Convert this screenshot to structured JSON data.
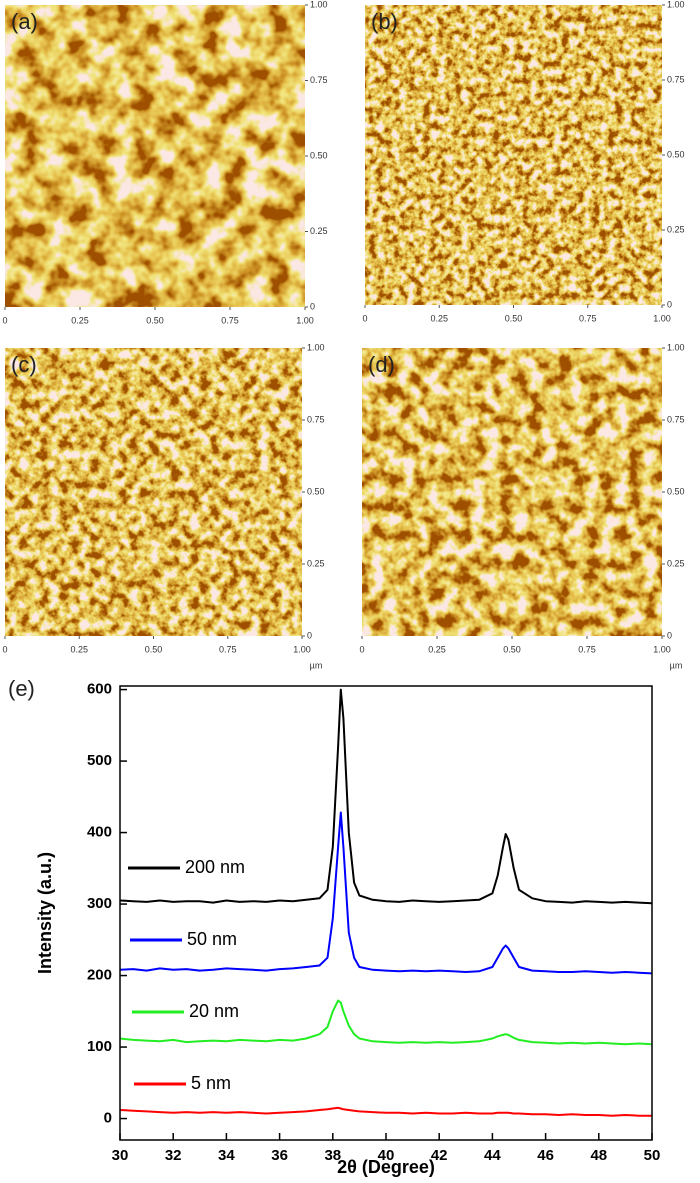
{
  "chart_data": [
    {
      "type": "afm",
      "label": "(a)",
      "xlim": [
        0,
        1
      ],
      "ylim": [
        0,
        1
      ],
      "xticks": [
        0,
        0.25,
        {
          "value": 0.5,
          "label": "0.50"
        },
        0.75,
        {
          "value": 1,
          "label": "1.00"
        }
      ],
      "yticks": [
        0,
        0.25,
        {
          "value": 0.5,
          "label": "0.50"
        },
        0.75,
        {
          "value": 1,
          "label": "1.00"
        }
      ]
    },
    {
      "type": "afm",
      "label": "(b)",
      "xlim": [
        0,
        1
      ],
      "ylim": [
        0,
        1
      ],
      "xticks": [
        0,
        0.25,
        {
          "value": 0.5,
          "label": "0.50"
        },
        0.75,
        {
          "value": 1,
          "label": "1.00"
        }
      ],
      "yticks": [
        0,
        0.25,
        {
          "value": 0.5,
          "label": "0.50"
        },
        0.75,
        {
          "value": 1,
          "label": "1.00"
        }
      ]
    },
    {
      "type": "afm",
      "label": "(c)",
      "unit": "µm",
      "xlim": [
        0,
        1
      ],
      "ylim": [
        0,
        1
      ],
      "xticks": [
        0,
        0.25,
        {
          "value": 0.5,
          "label": "0.50"
        },
        0.75,
        {
          "value": 1,
          "label": "1.00"
        }
      ],
      "yticks": [
        0,
        0.25,
        {
          "value": 0.5,
          "label": "0.50"
        },
        0.75,
        {
          "value": 1,
          "label": "1.00"
        }
      ]
    },
    {
      "type": "afm",
      "label": "(d)",
      "unit": "µm",
      "xlim": [
        0,
        1
      ],
      "ylim": [
        0,
        1
      ],
      "xticks": [
        0,
        0.25,
        {
          "value": 0.5,
          "label": "0.50"
        },
        0.75,
        {
          "value": 1,
          "label": "1.00"
        }
      ],
      "yticks": [
        0,
        0.25,
        {
          "value": 0.5,
          "label": "0.50"
        },
        0.75,
        {
          "value": 1,
          "label": "1.00"
        }
      ]
    },
    {
      "type": "line",
      "label": "(e)",
      "xlabel": "2θ (Degree)",
      "ylabel": "Intensity (a.u.)",
      "xlim": [
        30,
        50
      ],
      "ylim": [
        -30,
        605
      ],
      "xticks": [
        30,
        32,
        34,
        36,
        38,
        40,
        42,
        44,
        46,
        48,
        50
      ],
      "yticks": [
        0,
        100,
        200,
        300,
        400,
        500,
        600
      ],
      "x": [
        30,
        30.5,
        31,
        31.5,
        32,
        32.5,
        33,
        33.5,
        34,
        34.5,
        35,
        35.5,
        36,
        36.5,
        37,
        37.5,
        37.8,
        38.0,
        38.2,
        38.3,
        38.4,
        38.6,
        38.8,
        39.0,
        39.5,
        40,
        40.5,
        41,
        41.5,
        42,
        42.5,
        43,
        43.5,
        44.0,
        44.2,
        44.4,
        44.5,
        44.6,
        44.8,
        45.0,
        45.5,
        46,
        46.5,
        47,
        47.5,
        48,
        48.5,
        49,
        49.5,
        50
      ],
      "series": [
        {
          "name": "200 nm",
          "color": "#000000",
          "values": [
            305,
            304,
            303,
            305,
            303,
            304,
            304,
            302,
            305,
            303,
            304,
            303,
            305,
            304,
            306,
            308,
            320,
            380,
            520,
            600,
            560,
            400,
            330,
            312,
            306,
            304,
            303,
            305,
            304,
            303,
            304,
            305,
            306,
            315,
            340,
            380,
            398,
            390,
            350,
            320,
            308,
            304,
            303,
            302,
            304,
            303,
            302,
            303,
            302,
            301
          ]
        },
        {
          "name": "50 nm",
          "color": "#0000ff",
          "values": [
            208,
            209,
            207,
            210,
            208,
            209,
            207,
            208,
            210,
            209,
            208,
            207,
            209,
            210,
            212,
            214,
            225,
            280,
            380,
            428,
            380,
            260,
            225,
            212,
            208,
            207,
            206,
            207,
            206,
            207,
            206,
            205,
            206,
            212,
            225,
            238,
            242,
            238,
            225,
            212,
            207,
            206,
            205,
            205,
            206,
            205,
            204,
            205,
            204,
            203
          ]
        },
        {
          "name": "20 nm",
          "color": "#22ee22",
          "values": [
            112,
            110,
            109,
            108,
            110,
            107,
            108,
            109,
            108,
            110,
            109,
            108,
            110,
            109,
            112,
            118,
            128,
            150,
            165,
            162,
            150,
            130,
            118,
            112,
            108,
            107,
            106,
            107,
            106,
            107,
            106,
            107,
            108,
            112,
            115,
            117,
            118,
            117,
            113,
            110,
            107,
            106,
            105,
            106,
            105,
            106,
            105,
            104,
            105,
            104
          ]
        },
        {
          "name": "5 nm",
          "color": "#ff0000",
          "values": [
            12,
            11,
            10,
            9,
            8,
            9,
            8,
            9,
            8,
            9,
            8,
            7,
            8,
            9,
            10,
            12,
            13,
            14,
            15,
            14,
            13,
            12,
            11,
            10,
            9,
            8,
            8,
            7,
            8,
            7,
            7,
            8,
            7,
            7,
            8,
            8,
            8,
            8,
            7,
            7,
            6,
            6,
            5,
            6,
            5,
            5,
            4,
            5,
            4,
            4
          ]
        }
      ]
    }
  ]
}
